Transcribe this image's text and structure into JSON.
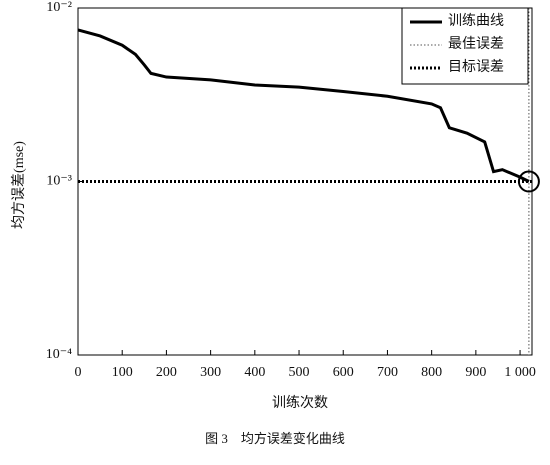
{
  "chart_data": {
    "type": "line",
    "log_y": true,
    "xlabel": "训练次数",
    "ylabel": "均方误差(mse)",
    "caption": "图 3　均方误差变化曲线",
    "xlim": [
      0,
      1027
    ],
    "xticks": [
      0,
      100,
      200,
      300,
      400,
      500,
      600,
      700,
      800,
      900,
      {
        "value": 1000,
        "label": "1 000"
      }
    ],
    "ylim": [
      0.0001,
      0.01
    ],
    "yticks": [
      {
        "value": 0.0001,
        "label": "10⁻⁴"
      },
      {
        "value": 0.001,
        "label": "10⁻³"
      },
      {
        "value": 0.01,
        "label": "10⁻²"
      }
    ],
    "legend": "upper right",
    "series": [
      {
        "name": "训练曲线",
        "color": "#000000",
        "x": [
          0,
          50,
          100,
          130,
          150,
          165,
          200,
          300,
          400,
          500,
          600,
          700,
          800,
          820,
          840,
          880,
          920,
          940,
          960,
          1000,
          1020
        ],
        "values": [
          0.00747,
          0.0069,
          0.0061,
          0.0054,
          0.0047,
          0.0042,
          0.004,
          0.00385,
          0.0036,
          0.0035,
          0.0033,
          0.0031,
          0.0028,
          0.00266,
          0.00204,
          0.0019,
          0.00169,
          0.00114,
          0.00117,
          0.00106,
          0.001
        ]
      }
    ],
    "best": {
      "name": "最佳误差",
      "x": 1020,
      "value": 0.001
    },
    "goal": {
      "name": "目标误差",
      "value": 0.001
    }
  }
}
